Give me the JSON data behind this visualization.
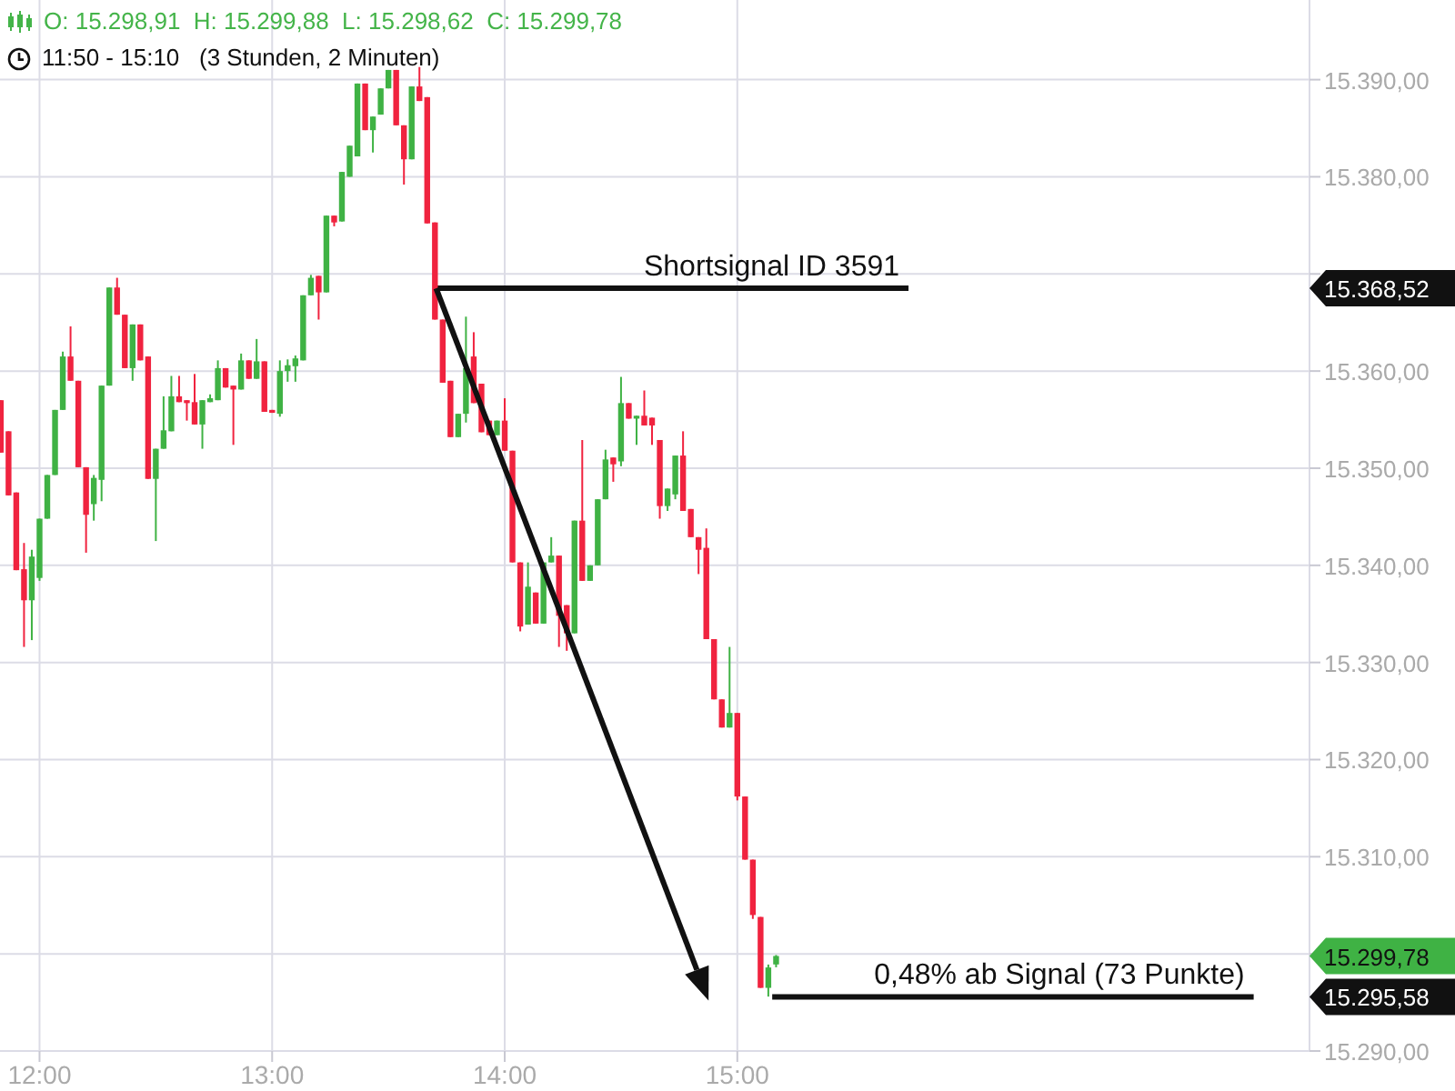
{
  "chart_data": {
    "type": "candlestick",
    "title": "O: 15.298,91  H: 15.299,88  L: 15.298,62  C: 15.299,78",
    "subtitle": "11:50 - 15:10   (3 Stunden, 2 Minuten)",
    "x": [
      11.8333,
      11.8667,
      11.9,
      11.9333,
      11.9667,
      12,
      12.0333,
      12.0667,
      12.1,
      12.1333,
      12.1667,
      12.2,
      12.2333,
      12.2667,
      12.3,
      12.3333,
      12.3667,
      12.4,
      12.4333,
      12.4667,
      12.5,
      12.5333,
      12.5667,
      12.6,
      12.6333,
      12.6667,
      12.7,
      12.7333,
      12.7667,
      12.8,
      12.8333,
      12.8667,
      12.9,
      12.9333,
      12.9667,
      13,
      13.0333,
      13.0667,
      13.1,
      13.1333,
      13.1667,
      13.2,
      13.2333,
      13.2667,
      13.3,
      13.3333,
      13.3667,
      13.4,
      13.4333,
      13.4667,
      13.5,
      13.5333,
      13.5667,
      13.6,
      13.6333,
      13.6667,
      13.7,
      13.7333,
      13.7667,
      13.8,
      13.8333,
      13.8667,
      13.9,
      13.9333,
      13.9667,
      14,
      14.0333,
      14.0667,
      14.1,
      14.1333,
      14.1667,
      14.2,
      14.2333,
      14.2667,
      14.3,
      14.3333,
      14.3667,
      14.4,
      14.4333,
      14.4667,
      14.5,
      14.5333,
      14.5667,
      14.6,
      14.6333,
      14.6667,
      14.7,
      14.7333,
      14.7667,
      14.8,
      14.8333,
      14.8667,
      14.9,
      14.9333,
      14.9667,
      15,
      15.0333,
      15.0667,
      15.1,
      15.1333,
      15.1667
    ],
    "ohlc": [
      [
        15357,
        15357,
        15351.6,
        15351.6
      ],
      [
        15353.8,
        15353.8,
        15347.2,
        15347.2
      ],
      [
        15347.5,
        15347.5,
        15339.5,
        15339.5
      ],
      [
        15339.6,
        15342.3,
        15331.6,
        15336.4
      ],
      [
        15336.4,
        15341.6,
        15332.3,
        15340.9
      ],
      [
        15338.7,
        15344.8,
        15338.4,
        15344.8
      ],
      [
        15344.8,
        15349.3,
        15344.8,
        15349.3
      ],
      [
        15349.3,
        15356,
        15349.3,
        15356
      ],
      [
        15356,
        15362,
        15356,
        15361.5
      ],
      [
        15361.5,
        15364.6,
        15359,
        15359
      ],
      [
        15359,
        15359,
        15350.1,
        15350.1
      ],
      [
        15350.1,
        15350.1,
        15341.3,
        15345.2
      ],
      [
        15346.3,
        15349.3,
        15344.6,
        15349
      ],
      [
        15348.8,
        15358.5,
        15346.6,
        15358.5
      ],
      [
        15358.5,
        15368.6,
        15358.5,
        15368.6
      ],
      [
        15368.6,
        15369.6,
        15365.8,
        15365.8
      ],
      [
        15365.8,
        15365.8,
        15360.3,
        15360.3
      ],
      [
        15360.3,
        15364.8,
        15359,
        15364.8
      ],
      [
        15364.8,
        15364.8,
        15361.1,
        15361.1
      ],
      [
        15361.5,
        15361.5,
        15348.9,
        15348.9
      ],
      [
        15348.9,
        15352,
        15342.5,
        15352
      ],
      [
        15352,
        15357.4,
        15352,
        15353.9
      ],
      [
        15353.8,
        15359.5,
        15353.8,
        15357.4
      ],
      [
        15357.4,
        15359.5,
        15356.8,
        15356.8
      ],
      [
        15357,
        15357,
        15354.9,
        15356.7
      ],
      [
        15356.8,
        15359.7,
        15354.5,
        15354.5
      ],
      [
        15354.5,
        15357,
        15352,
        15357
      ],
      [
        15356.8,
        15357.6,
        15356.8,
        15357.2
      ],
      [
        15357,
        15361.1,
        15357,
        15360.3
      ],
      [
        15360.3,
        15360.3,
        15358.3,
        15358.3
      ],
      [
        15358.5,
        15358.5,
        15352.4,
        15358.1
      ],
      [
        15358.1,
        15361.8,
        15358.1,
        15361.1
      ],
      [
        15361.1,
        15361.1,
        15359.2,
        15359.2
      ],
      [
        15359.2,
        15363.3,
        15359.2,
        15361
      ],
      [
        15361,
        15361,
        15355.8,
        15355.8
      ],
      [
        15356,
        15356,
        15355.7,
        15355.7
      ],
      [
        15355.6,
        15361.1,
        15355.3,
        15360
      ],
      [
        15360,
        15361.2,
        15358.9,
        15360.6
      ],
      [
        15360.5,
        15361.6,
        15358.9,
        15361.3
      ],
      [
        15361.1,
        15367.8,
        15361.1,
        15367.8
      ],
      [
        15367.8,
        15369.9,
        15367.8,
        15369.6
      ],
      [
        15369.8,
        15369.8,
        15365.3,
        15368.1
      ],
      [
        15368.1,
        15376,
        15368.1,
        15376
      ],
      [
        15376,
        15376,
        15374.9,
        15375.3
      ],
      [
        15375.4,
        15380.5,
        15375.4,
        15380.5
      ],
      [
        15380,
        15383.2,
        15380,
        15383.2
      ],
      [
        15382.1,
        15389.6,
        15382.1,
        15389.6
      ],
      [
        15389.6,
        15389.6,
        15384.8,
        15384.8
      ],
      [
        15384.8,
        15386.2,
        15382.5,
        15386.2
      ],
      [
        15386.4,
        15389.1,
        15386.4,
        15389.1
      ],
      [
        15389.1,
        15391,
        15389.1,
        15391
      ],
      [
        15391,
        15391,
        15385.3,
        15385.3
      ],
      [
        15385.3,
        15385.3,
        15379.2,
        15381.8
      ],
      [
        15381.8,
        15389.3,
        15381.8,
        15389.3
      ],
      [
        15389.3,
        15391.3,
        15387.8,
        15387.8
      ],
      [
        15388.2,
        15388.2,
        15375.2,
        15375.2
      ],
      [
        15375.3,
        15375.3,
        15365.3,
        15365.3
      ],
      [
        15365.3,
        15365.3,
        15358.8,
        15358.8
      ],
      [
        15359,
        15359,
        15353.2,
        15353.2
      ],
      [
        15353.2,
        15355.6,
        15353.2,
        15355.6
      ],
      [
        15355.6,
        15365.6,
        15354.7,
        15360.3
      ],
      [
        15361.5,
        15364,
        15356.7,
        15356.7
      ],
      [
        15358.7,
        15358.7,
        15353.7,
        15353.7
      ],
      [
        15354.9,
        15354.9,
        15353.4,
        15353.4
      ],
      [
        15353.4,
        15354.9,
        15353.4,
        15354.9
      ],
      [
        15354.9,
        15357.2,
        15351.8,
        15351.8
      ],
      [
        15351.8,
        15351.8,
        15340.3,
        15340.3
      ],
      [
        15340.3,
        15340.3,
        15333.2,
        15333.7
      ],
      [
        15333.9,
        15340.3,
        15333.9,
        15337.8
      ],
      [
        15337.2,
        15337.2,
        15334,
        15334
      ],
      [
        15334,
        15340.3,
        15334,
        15340.3
      ],
      [
        15340.3,
        15342.9,
        15340.3,
        15341
      ],
      [
        15341,
        15341,
        15331.6,
        15334.8
      ],
      [
        15335.9,
        15335.9,
        15331.2,
        15333
      ],
      [
        15333,
        15344.6,
        15333,
        15344.6
      ],
      [
        15344.6,
        15352.9,
        15338.4,
        15338.4
      ],
      [
        15338.4,
        15340,
        15338.4,
        15340
      ],
      [
        15340,
        15346.8,
        15340,
        15346.8
      ],
      [
        15346.8,
        15351.9,
        15346.8,
        15350.9
      ],
      [
        15351.1,
        15351.1,
        15348.6,
        15350.4
      ],
      [
        15350.7,
        15359.4,
        15350.2,
        15356.7
      ],
      [
        15356.7,
        15356.7,
        15355.1,
        15355.1
      ],
      [
        15355.1,
        15355.4,
        15352.4,
        15355.4
      ],
      [
        15355.4,
        15358,
        15354.4,
        15354.4
      ],
      [
        15355.2,
        15355.2,
        15352.4,
        15354.4
      ],
      [
        15352.9,
        15352.9,
        15344.8,
        15346.1
      ],
      [
        15346.1,
        15347.9,
        15345.6,
        15347.9
      ],
      [
        15347.3,
        15351.3,
        15346.8,
        15351.3
      ],
      [
        15351.3,
        15353.8,
        15345.6,
        15345.6
      ],
      [
        15345.8,
        15345.8,
        15342.9,
        15342.9
      ],
      [
        15342.9,
        15342.9,
        15339.1,
        15341.6
      ],
      [
        15341.8,
        15343.8,
        15332.4,
        15332.4
      ],
      [
        15332.4,
        15332.4,
        15326.2,
        15326.2
      ],
      [
        15326.2,
        15326.2,
        15323.3,
        15323.3
      ],
      [
        15323.3,
        15331.6,
        15323.3,
        15324.8
      ],
      [
        15324.8,
        15324.8,
        15315.8,
        15316.2
      ],
      [
        15316.2,
        15316.2,
        15309.7,
        15309.7
      ],
      [
        15309.7,
        15309.7,
        15303.6,
        15304
      ],
      [
        15303.8,
        15303.8,
        15296.5,
        15296.5
      ],
      [
        15296.5,
        15298.9,
        15295.6,
        15298.6
      ],
      [
        15298.91,
        15299.88,
        15298.62,
        15299.78
      ]
    ],
    "colors": [
      "#f0233f",
      "#f0233f",
      "#f0233f",
      "#f0233f",
      "#3fb244",
      "#3fb244",
      "#3fb244",
      "#3fb244",
      "#3fb244",
      "#f0233f",
      "#f0233f",
      "#f0233f",
      "#3fb244",
      "#3fb244",
      "#3fb244",
      "#f0233f",
      "#f0233f",
      "#3fb244",
      "#f0233f",
      "#f0233f",
      "#3fb244",
      "#3fb244",
      "#3fb244",
      "#f0233f",
      "#f0233f",
      "#f0233f",
      "#3fb244",
      "#3fb244",
      "#3fb244",
      "#f0233f",
      "#f0233f",
      "#3fb244",
      "#f0233f",
      "#3fb244",
      "#f0233f",
      "#f0233f",
      "#3fb244",
      "#3fb244",
      "#3fb244",
      "#3fb244",
      "#3fb244",
      "#f0233f",
      "#3fb244",
      "#f0233f",
      "#3fb244",
      "#3fb244",
      "#3fb244",
      "#f0233f",
      "#3fb244",
      "#3fb244",
      "#3fb244",
      "#f0233f",
      "#f0233f",
      "#3fb244",
      "#f0233f",
      "#f0233f",
      "#f0233f",
      "#f0233f",
      "#f0233f",
      "#3fb244",
      "#3fb244",
      "#f0233f",
      "#f0233f",
      "#f0233f",
      "#3fb244",
      "#f0233f",
      "#f0233f",
      "#f0233f",
      "#3fb244",
      "#f0233f",
      "#3fb244",
      "#3fb244",
      "#f0233f",
      "#f0233f",
      "#3fb244",
      "#f0233f",
      "#3fb244",
      "#3fb244",
      "#3fb244",
      "#f0233f",
      "#3fb244",
      "#f0233f",
      "#3fb244",
      "#f0233f",
      "#f0233f",
      "#f0233f",
      "#3fb244",
      "#3fb244",
      "#f0233f",
      "#f0233f",
      "#f0233f",
      "#f0233f",
      "#f0233f",
      "#f0233f",
      "#3fb244",
      "#f0233f",
      "#f0233f",
      "#f0233f",
      "#f0233f",
      "#3fb244",
      "#3fb244"
    ],
    "xlim": [
      11.83,
      17.46
    ],
    "xticks": [
      {
        "value": 12,
        "label": "12:00"
      },
      {
        "value": 13,
        "label": "13:00"
      },
      {
        "value": 14,
        "label": "14:00"
      },
      {
        "value": 15,
        "label": "15:00"
      }
    ],
    "ylim": [
      15290,
      15398.2
    ],
    "yticks": [
      {
        "value": 15290,
        "label": "15.290,00"
      },
      {
        "value": 15295.58,
        "label": "15.295,58"
      },
      {
        "value": 15299.78,
        "label": "15.299,78"
      },
      {
        "value": 15300,
        "label": null
      },
      {
        "value": 15310,
        "label": "15.310,00"
      },
      {
        "value": 15320,
        "label": "15.320,00"
      },
      {
        "value": 15330,
        "label": "15.330,00"
      },
      {
        "value": 15340,
        "label": "15.340,00"
      },
      {
        "value": 15350,
        "label": "15.350,00"
      },
      {
        "value": 15360,
        "label": "15.360,00"
      },
      {
        "value": 15368.52,
        "label": "15.368,52"
      },
      {
        "value": 15370,
        "label": null
      },
      {
        "value": 15380,
        "label": "15.380,00"
      },
      {
        "value": 15390,
        "label": "15.390,00"
      }
    ],
    "grid": true,
    "series": [
      {
        "type": "line",
        "color": "#111111",
        "x": [
          13.705,
          15.736
        ],
        "values": [
          15368.52,
          15368.52
        ]
      },
      {
        "type": "line",
        "color": "#111111",
        "x": [
          15.15,
          17.22
        ],
        "values": [
          15295.58,
          15295.58
        ]
      }
    ],
    "annotations": [
      {
        "text": "Shortsignal ID 3591",
        "x": 15.736,
        "y": 15368.52
      },
      {
        "text": "0,48% ab Signal (73 Punkte)",
        "x": 17.22,
        "y": 15295.58
      }
    ]
  }
}
